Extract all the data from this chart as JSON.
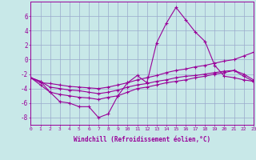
{
  "xlabel": "Windchill (Refroidissement éolien,°C)",
  "x": [
    0,
    1,
    2,
    3,
    4,
    5,
    6,
    7,
    8,
    9,
    10,
    11,
    12,
    13,
    14,
    15,
    16,
    17,
    18,
    19,
    20,
    21,
    22,
    23
  ],
  "line1": [
    -2.5,
    -3.0,
    -4.5,
    -5.8,
    -6.0,
    -6.5,
    -6.5,
    -8.0,
    -7.5,
    -5.0,
    -3.2,
    -2.2,
    -3.2,
    2.3,
    5.0,
    7.2,
    5.5,
    3.8,
    2.5,
    -0.8,
    -2.3,
    -2.5,
    -2.8,
    -3.0
  ],
  "line2": [
    -2.5,
    -3.2,
    -3.3,
    -3.5,
    -3.7,
    -3.8,
    -3.9,
    -4.0,
    -3.8,
    -3.5,
    -3.2,
    -2.8,
    -2.5,
    -2.2,
    -1.8,
    -1.5,
    -1.3,
    -1.0,
    -0.8,
    -0.5,
    -0.2,
    0.0,
    0.5,
    1.0
  ],
  "line3": [
    -2.5,
    -3.0,
    -3.8,
    -4.0,
    -4.2,
    -4.3,
    -4.5,
    -4.7,
    -4.5,
    -4.2,
    -3.8,
    -3.5,
    -3.3,
    -3.0,
    -2.8,
    -2.5,
    -2.3,
    -2.2,
    -2.0,
    -1.8,
    -1.6,
    -1.5,
    -2.0,
    -2.8
  ],
  "line4": [
    -2.5,
    -3.5,
    -4.5,
    -4.8,
    -5.0,
    -5.2,
    -5.3,
    -5.5,
    -5.2,
    -5.0,
    -4.5,
    -4.0,
    -3.8,
    -3.5,
    -3.2,
    -3.0,
    -2.8,
    -2.5,
    -2.3,
    -2.0,
    -1.8,
    -1.5,
    -2.3,
    -3.0
  ],
  "bg_color": "#c8e8e8",
  "grid_color": "#99aacc",
  "line_color": "#990099",
  "ylim": [
    -9,
    8
  ],
  "yticks": [
    -8,
    -6,
    -4,
    -2,
    0,
    2,
    4,
    6
  ],
  "xlim": [
    0,
    23
  ]
}
